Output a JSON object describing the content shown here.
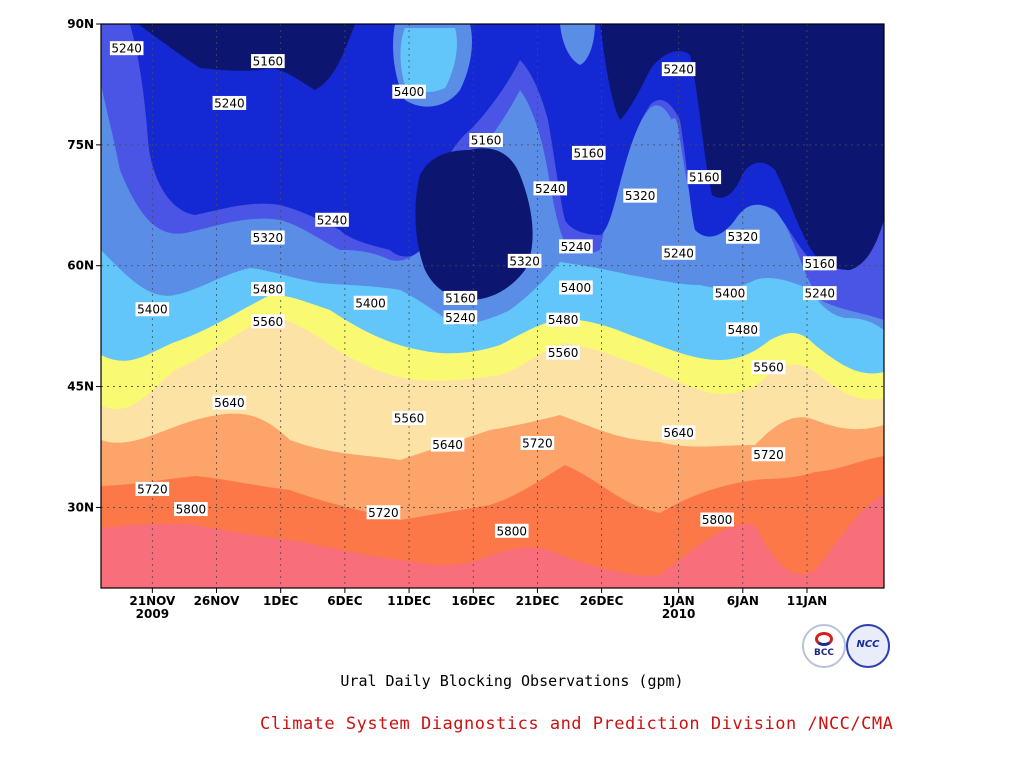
{
  "chart_data": {
    "type": "contour",
    "title": "Ural Daily Blocking Observations (gpm)",
    "x_tick_labels": [
      "21NOV",
      "26NOV",
      "1DEC",
      "6DEC",
      "11DEC",
      "16DEC",
      "21DEC",
      "26DEC",
      "1JAN",
      "6JAN",
      "11JAN"
    ],
    "x_tick_dates": [
      "2009-11-21",
      "2009-11-26",
      "2009-12-01",
      "2009-12-06",
      "2009-12-11",
      "2009-12-16",
      "2009-12-21",
      "2009-12-26",
      "2010-01-01",
      "2010-01-06",
      "2010-01-11"
    ],
    "x_year_labels": [
      {
        "label": "2009",
        "date": "2009-11-21"
      },
      {
        "label": "2010",
        "date": "2010-01-01"
      }
    ],
    "xlim": [
      "2009-11-17",
      "2010-01-17"
    ],
    "y_tick_labels": [
      "30N",
      "45N",
      "60N",
      "75N",
      "90N"
    ],
    "y_ticks": [
      30,
      45,
      60,
      75,
      90
    ],
    "ylim": [
      20,
      90
    ],
    "grid": true,
    "levels": [
      5160,
      5240,
      5320,
      5400,
      5480,
      5560,
      5640,
      5720,
      5800
    ],
    "fill_colors": {
      "below_5160": "#0c1670",
      "5160_5240": "#1428d4",
      "5240_5320": "#4a55e6",
      "5320_5400": "#5a8ee6",
      "5400_5480": "#62c6fa",
      "5480_5560": "#fafa72",
      "5560_5640": "#fde2a6",
      "5640_5720": "#fca46a",
      "5720_5800": "#fc7848",
      "above_5800": "#f86e7a"
    },
    "contour_labels": [
      {
        "value": 5240,
        "date": "2009-11-19",
        "lat": 87.0
      },
      {
        "value": 5160,
        "date": "2009-11-30",
        "lat": 85.4
      },
      {
        "value": 5240,
        "date": "2009-11-27",
        "lat": 80.2
      },
      {
        "value": 5400,
        "date": "2009-12-11",
        "lat": 81.6
      },
      {
        "value": 5160,
        "date": "2009-12-17",
        "lat": 75.6
      },
      {
        "value": 5160,
        "date": "2009-12-25",
        "lat": 74.0
      },
      {
        "value": 5240,
        "date": "2010-01-01",
        "lat": 84.4
      },
      {
        "value": 5240,
        "date": "2009-12-22",
        "lat": 69.6
      },
      {
        "value": 5320,
        "date": "2009-12-29",
        "lat": 68.7
      },
      {
        "value": 5160,
        "date": "2010-01-03",
        "lat": 71.0
      },
      {
        "value": 5240,
        "date": "2009-12-05",
        "lat": 65.7
      },
      {
        "value": 5320,
        "date": "2009-11-30",
        "lat": 63.5
      },
      {
        "value": 5240,
        "date": "2009-12-24",
        "lat": 62.4
      },
      {
        "value": 5240,
        "date": "2010-01-01",
        "lat": 61.6
      },
      {
        "value": 5320,
        "date": "2010-01-06",
        "lat": 63.6
      },
      {
        "value": 5160,
        "date": "2010-01-12",
        "lat": 60.3
      },
      {
        "value": 5320,
        "date": "2009-12-20",
        "lat": 60.6
      },
      {
        "value": 5480,
        "date": "2009-11-30",
        "lat": 57.1
      },
      {
        "value": 5400,
        "date": "2009-11-21",
        "lat": 54.6
      },
      {
        "value": 5400,
        "date": "2009-12-08",
        "lat": 55.4
      },
      {
        "value": 5160,
        "date": "2009-12-15",
        "lat": 56.0
      },
      {
        "value": 5240,
        "date": "2009-12-15",
        "lat": 53.6
      },
      {
        "value": 5400,
        "date": "2009-12-24",
        "lat": 57.3
      },
      {
        "value": 5400,
        "date": "2010-01-05",
        "lat": 56.6
      },
      {
        "value": 5240,
        "date": "2010-01-12",
        "lat": 56.6
      },
      {
        "value": 5480,
        "date": "2009-12-23",
        "lat": 53.3
      },
      {
        "value": 5560,
        "date": "2009-11-30",
        "lat": 53.1
      },
      {
        "value": 5480,
        "date": "2010-01-06",
        "lat": 52.1
      },
      {
        "value": 5560,
        "date": "2009-12-23",
        "lat": 49.2
      },
      {
        "value": 5560,
        "date": "2010-01-08",
        "lat": 47.4
      },
      {
        "value": 5640,
        "date": "2009-11-27",
        "lat": 43.0
      },
      {
        "value": 5560,
        "date": "2009-12-11",
        "lat": 41.1
      },
      {
        "value": 5640,
        "date": "2009-12-14",
        "lat": 37.8
      },
      {
        "value": 5720,
        "date": "2009-12-21",
        "lat": 38.0
      },
      {
        "value": 5640,
        "date": "2010-01-01",
        "lat": 39.3
      },
      {
        "value": 5720,
        "date": "2010-01-08",
        "lat": 36.6
      },
      {
        "value": 5720,
        "date": "2009-11-21",
        "lat": 32.3
      },
      {
        "value": 5800,
        "date": "2009-11-24",
        "lat": 29.8
      },
      {
        "value": 5720,
        "date": "2009-12-09",
        "lat": 29.4
      },
      {
        "value": 5800,
        "date": "2009-12-19",
        "lat": 27.1
      },
      {
        "value": 5800,
        "date": "2010-01-04",
        "lat": 28.5
      }
    ]
  },
  "caption": {
    "main": "Ural Daily Blocking Observations (gpm)",
    "credit": "Climate System Diagnostics and Prediction Division /NCC/CMA"
  },
  "logos": {
    "bcc_text": "BCC",
    "ncc_text": "NCC"
  },
  "colors": {
    "credit_text": "#cc1111",
    "contour_line": "#000000"
  }
}
